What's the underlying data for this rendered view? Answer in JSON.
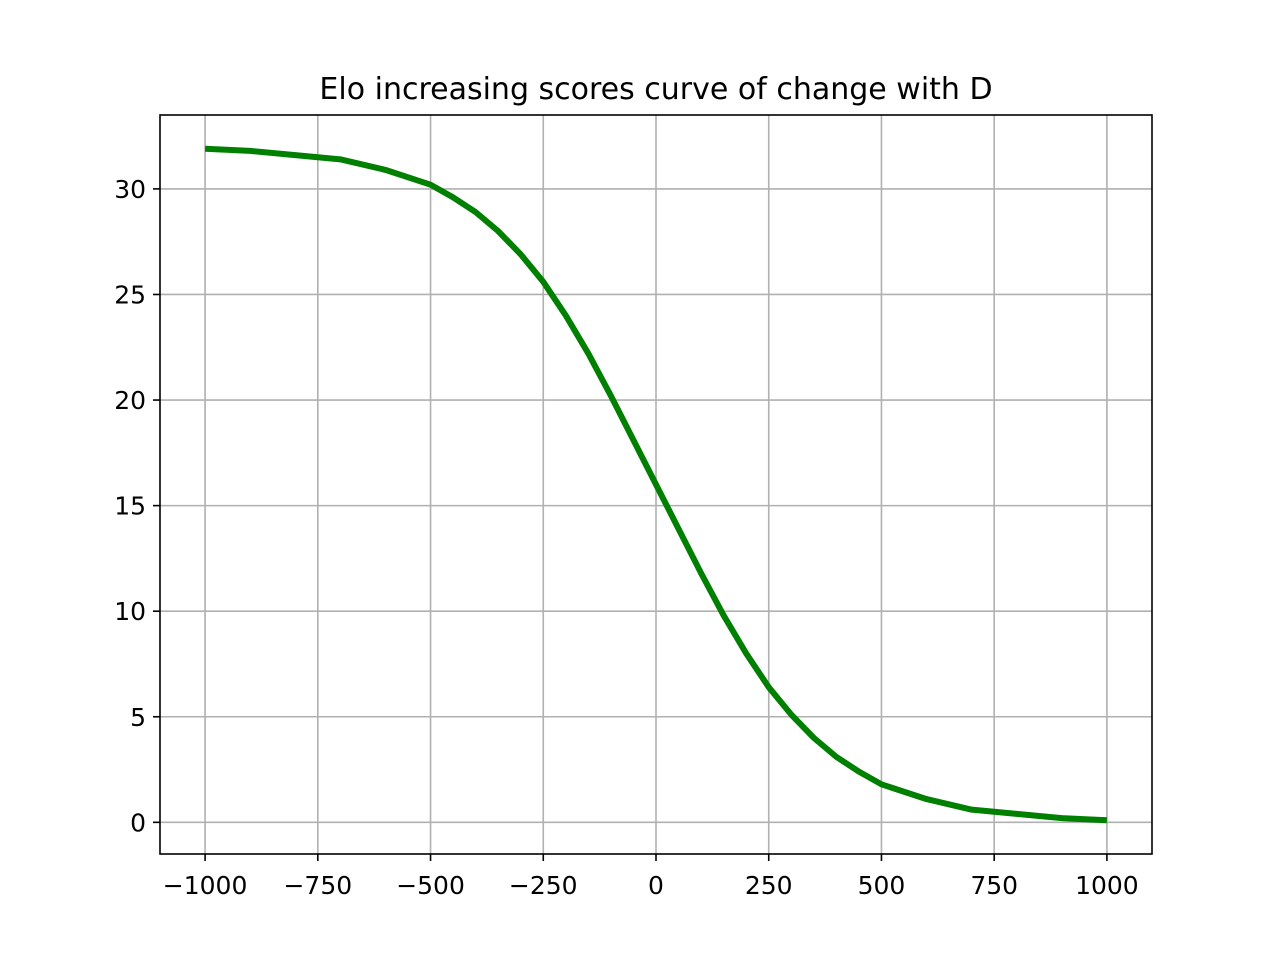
{
  "chart_data": {
    "type": "line",
    "title": "Elo increasing scores curve of change with D",
    "xlabel": "",
    "ylabel": "",
    "xlim": [
      -1100,
      1100
    ],
    "ylim": [
      -1.5,
      33.5
    ],
    "grid": true,
    "x_ticks": [
      {
        "value": -1000,
        "label": "−1000"
      },
      {
        "value": -750,
        "label": "−750"
      },
      {
        "value": -500,
        "label": "−500"
      },
      {
        "value": -250,
        "label": "−250"
      },
      {
        "value": 0,
        "label": "0"
      },
      {
        "value": 250,
        "label": "250"
      },
      {
        "value": 500,
        "label": "500"
      },
      {
        "value": 750,
        "label": "750"
      },
      {
        "value": 1000,
        "label": "1000"
      }
    ],
    "y_ticks": [
      {
        "value": 0,
        "label": "0"
      },
      {
        "value": 5,
        "label": "5"
      },
      {
        "value": 10,
        "label": "10"
      },
      {
        "value": 15,
        "label": "15"
      },
      {
        "value": 20,
        "label": "20"
      },
      {
        "value": 25,
        "label": "25"
      },
      {
        "value": 30,
        "label": "30"
      }
    ],
    "series": [
      {
        "color": "#008000",
        "x": [
          -1000,
          -900,
          -800,
          -700,
          -600,
          -500,
          -450,
          -400,
          -350,
          -300,
          -250,
          -200,
          -150,
          -100,
          -50,
          0,
          50,
          100,
          150,
          200,
          250,
          300,
          350,
          400,
          450,
          500,
          600,
          700,
          800,
          900,
          1000
        ],
        "y": [
          31.9,
          31.8,
          31.6,
          31.4,
          30.9,
          30.2,
          29.6,
          28.9,
          28.0,
          26.9,
          25.6,
          24.0,
          22.2,
          20.2,
          18.1,
          16.0,
          13.9,
          11.8,
          9.8,
          8.0,
          6.4,
          5.1,
          4.0,
          3.1,
          2.4,
          1.8,
          1.1,
          0.6,
          0.4,
          0.2,
          0.1
        ]
      }
    ]
  },
  "colors": {
    "line": "#008000",
    "grid": "#b0b0b0",
    "axes": "#000000"
  }
}
